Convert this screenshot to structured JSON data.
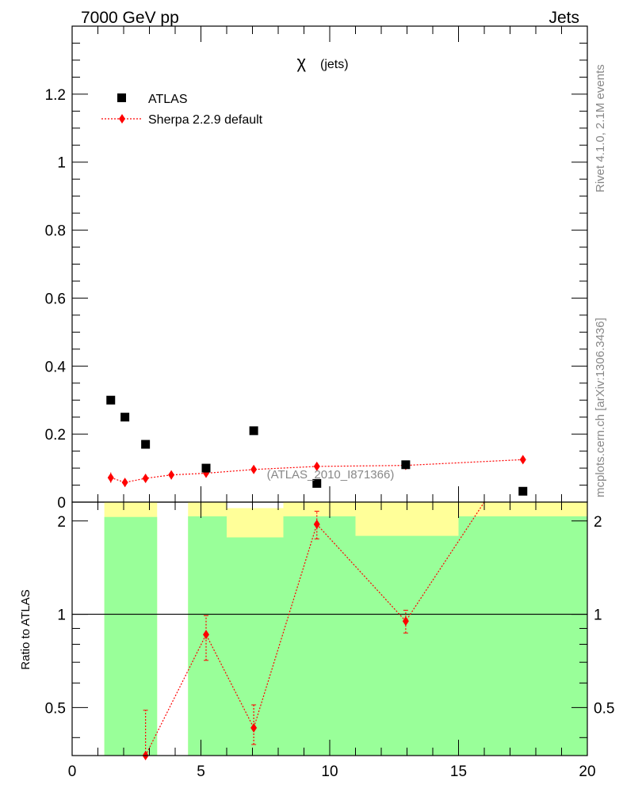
{
  "header": {
    "left": "7000 GeV pp",
    "right": "Jets"
  },
  "side": {
    "rivet": "Rivet 4.1.0,  2.1M events",
    "mcplots": "mcplots.cern.ch [arXiv:1306.3436]"
  },
  "colors": {
    "data": "#000000",
    "mc": "#ff0000",
    "band_outer": "#ffff99",
    "band_inner": "#99ff99",
    "watermark": "#888888"
  },
  "chart_data": [
    {
      "type": "scatter",
      "title": "χ (jets)",
      "title_symbol": "χ",
      "title_suffix": "(jets)",
      "watermark": "(ATLAS_2010_I871366)",
      "xlim": [
        0,
        20
      ],
      "ylim": [
        0,
        1.4
      ],
      "yticks": [
        0,
        0.2,
        0.4,
        0.6,
        0.8,
        1,
        1.2
      ],
      "ytick_labels": [
        "0",
        "0.2",
        "0.4",
        "0.6",
        "0.8",
        "1",
        "1.2"
      ],
      "legend": {
        "location": "top-left",
        "entries": [
          "ATLAS",
          "Sherpa 2.2.9 default"
        ]
      },
      "series": [
        {
          "name": "ATLAS",
          "marker": "square",
          "x": [
            1.5,
            2.05,
            2.85,
            5.2,
            7.05,
            9.5,
            12.95,
            17.5
          ],
          "y": [
            0.3,
            0.25,
            0.17,
            0.1,
            0.21,
            0.055,
            0.11,
            0.032
          ]
        },
        {
          "name": "Sherpa 2.2.9 default",
          "marker": "diamond",
          "line": "dotted",
          "x": [
            1.5,
            2.05,
            2.85,
            3.85,
            5.2,
            7.05,
            9.5,
            12.95,
            17.5
          ],
          "y": [
            0.072,
            0.058,
            0.07,
            0.08,
            0.085,
            0.096,
            0.105,
            0.108,
            0.125
          ],
          "yerr": [
            0.015,
            0.013,
            0.012,
            0.013,
            0.012,
            0.01,
            0.01,
            0.01,
            0.006
          ]
        }
      ]
    },
    {
      "type": "scatter",
      "ylabel": "Ratio to ATLAS",
      "xlim": [
        0,
        20
      ],
      "ylim": [
        0.35,
        2.3
      ],
      "yscale": "log",
      "xticks": [
        0,
        5,
        10,
        15,
        20
      ],
      "xtick_labels": [
        "0",
        "5",
        "10",
        "15",
        "20"
      ],
      "yticks": [
        0.5,
        1,
        2
      ],
      "ytick_labels": [
        "0.5",
        "1",
        "2"
      ],
      "bands": [
        {
          "x0": 1.25,
          "x1": 3.3,
          "inner_hi": 2.06,
          "outer_hi": 2.3
        },
        {
          "x0": 4.5,
          "x1": 6.0,
          "inner_hi": 2.07,
          "outer_hi": 2.3
        },
        {
          "x0": 6.0,
          "x1": 8.2,
          "inner_hi": 1.77,
          "outer_hi": 2.2
        },
        {
          "x0": 8.2,
          "x1": 11.0,
          "inner_hi": 2.07,
          "outer_hi": 2.3
        },
        {
          "x0": 11.0,
          "x1": 15.0,
          "inner_hi": 1.79,
          "outer_hi": 2.3
        },
        {
          "x0": 15.0,
          "x1": 20.0,
          "inner_hi": 2.07,
          "outer_hi": 2.3
        }
      ],
      "series": [
        {
          "name": "Sherpa 2.2.9 default",
          "marker": "diamond",
          "line": "dotted",
          "x": [
            2.85,
            5.2,
            7.05,
            9.5,
            12.95
          ],
          "y": [
            0.35,
            0.86,
            0.43,
            1.95,
            0.95
          ],
          "yerr_lo": [
            0.02,
            0.15,
            0.05,
            0.2,
            0.08
          ],
          "yerr_hi": [
            0.14,
            0.13,
            0.08,
            0.2,
            0.08
          ],
          "line_extends_to": [
            16.0,
            2.3
          ]
        }
      ]
    }
  ]
}
